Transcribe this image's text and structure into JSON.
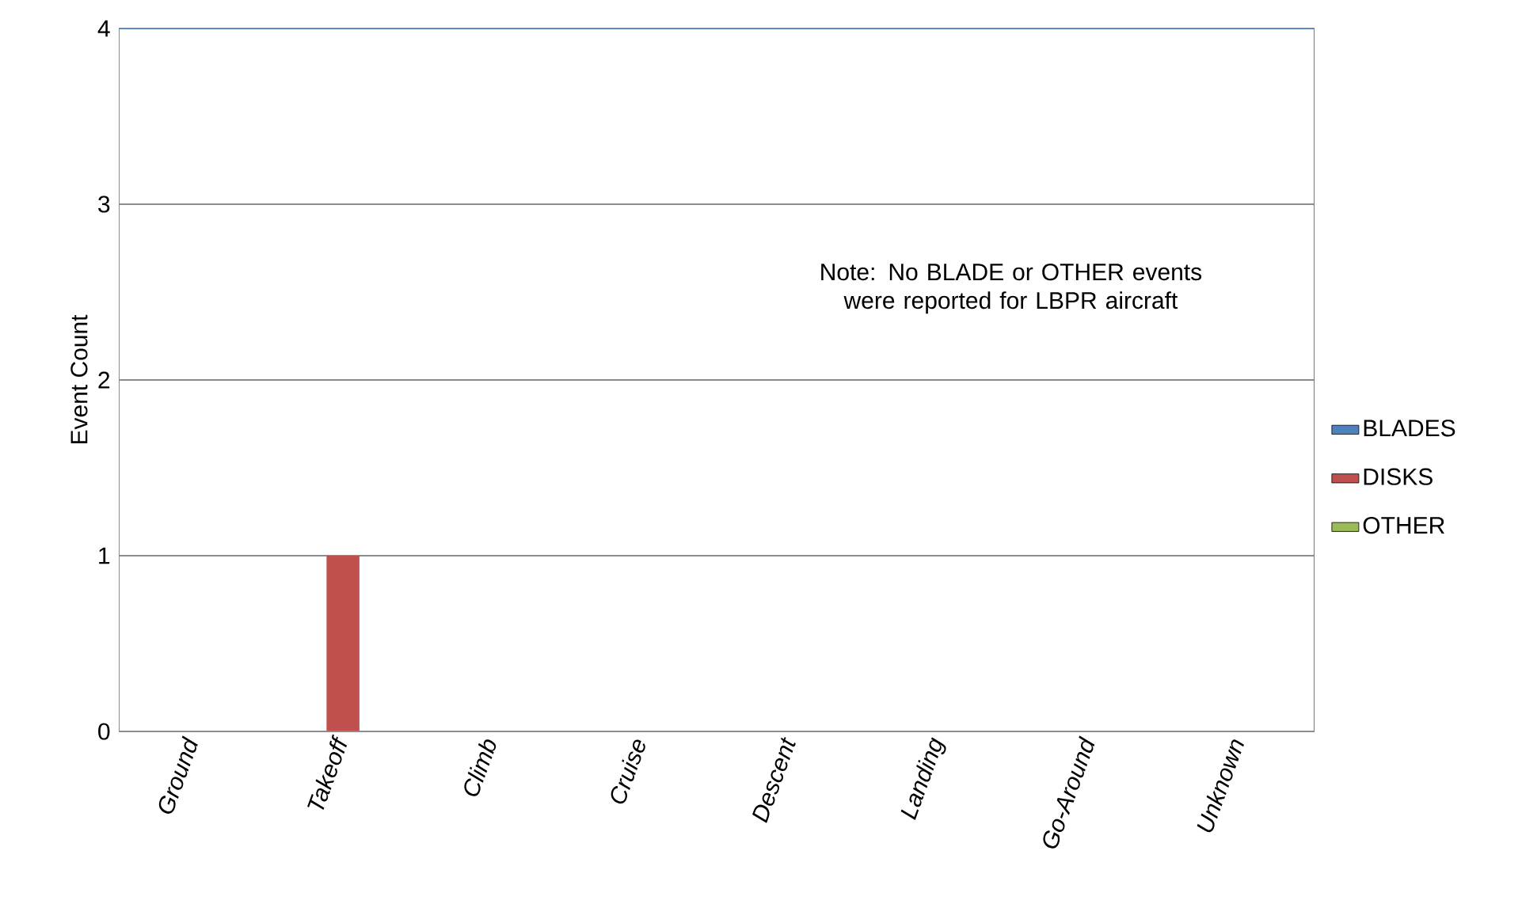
{
  "chart_data": {
    "type": "bar",
    "ylabel": "Event Count",
    "categories": [
      "Ground",
      "Takeoff",
      "Climb",
      "Cruise",
      "Descent",
      "Landing",
      "Go-Around",
      "Unknown"
    ],
    "series": [
      {
        "name": "BLADES",
        "color": "#4f81bd",
        "values": [
          0,
          0,
          0,
          0,
          0,
          0,
          0,
          0
        ]
      },
      {
        "name": "DISKS",
        "color": "#c0504d",
        "values": [
          0,
          1,
          0,
          0,
          0,
          0,
          0,
          0
        ]
      },
      {
        "name": "OTHER",
        "color": "#9bbb59",
        "values": [
          0,
          0,
          0,
          0,
          0,
          0,
          0,
          0
        ]
      }
    ],
    "ylim": [
      0,
      4
    ],
    "yticks": [
      0,
      1,
      2,
      3,
      4
    ],
    "grid": "y",
    "legend": "right",
    "annotations": [
      "Note: No BLADE or OTHER events were reported for LBPR aircraft"
    ]
  }
}
